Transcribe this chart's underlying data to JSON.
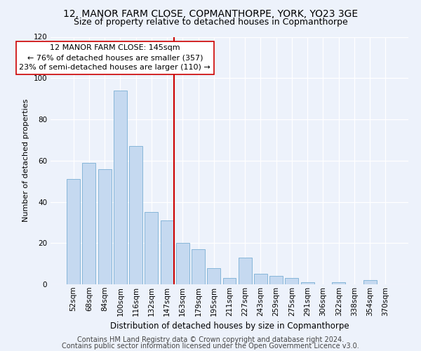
{
  "title": "12, MANOR FARM CLOSE, COPMANTHORPE, YORK, YO23 3GE",
  "subtitle": "Size of property relative to detached houses in Copmanthorpe",
  "xlabel": "Distribution of detached houses by size in Copmanthorpe",
  "ylabel": "Number of detached properties",
  "bar_color": "#c5d9f0",
  "bar_edge_color": "#7aafd4",
  "categories": [
    "52sqm",
    "68sqm",
    "84sqm",
    "100sqm",
    "116sqm",
    "132sqm",
    "147sqm",
    "163sqm",
    "179sqm",
    "195sqm",
    "211sqm",
    "227sqm",
    "243sqm",
    "259sqm",
    "275sqm",
    "291sqm",
    "306sqm",
    "322sqm",
    "338sqm",
    "354sqm",
    "370sqm"
  ],
  "values": [
    51,
    59,
    56,
    94,
    67,
    35,
    31,
    20,
    17,
    8,
    3,
    13,
    5,
    4,
    3,
    1,
    0,
    1,
    0,
    2,
    0
  ],
  "vline_index": 6,
  "vline_color": "#cc0000",
  "annotation_text": "12 MANOR FARM CLOSE: 145sqm\n← 76% of detached houses are smaller (357)\n23% of semi-detached houses are larger (110) →",
  "annotation_box_color": "#ffffff",
  "annotation_box_edge_color": "#cc0000",
  "ylim": [
    0,
    120
  ],
  "yticks": [
    0,
    20,
    40,
    60,
    80,
    100,
    120
  ],
  "footer_line1": "Contains HM Land Registry data © Crown copyright and database right 2024.",
  "footer_line2": "Contains public sector information licensed under the Open Government Licence v3.0.",
  "background_color": "#edf2fb",
  "grid_color": "#ffffff",
  "title_fontsize": 10,
  "subtitle_fontsize": 9,
  "annotation_fontsize": 8,
  "footer_fontsize": 7,
  "ylabel_fontsize": 8,
  "xlabel_fontsize": 8.5,
  "tick_fontsize": 7.5
}
